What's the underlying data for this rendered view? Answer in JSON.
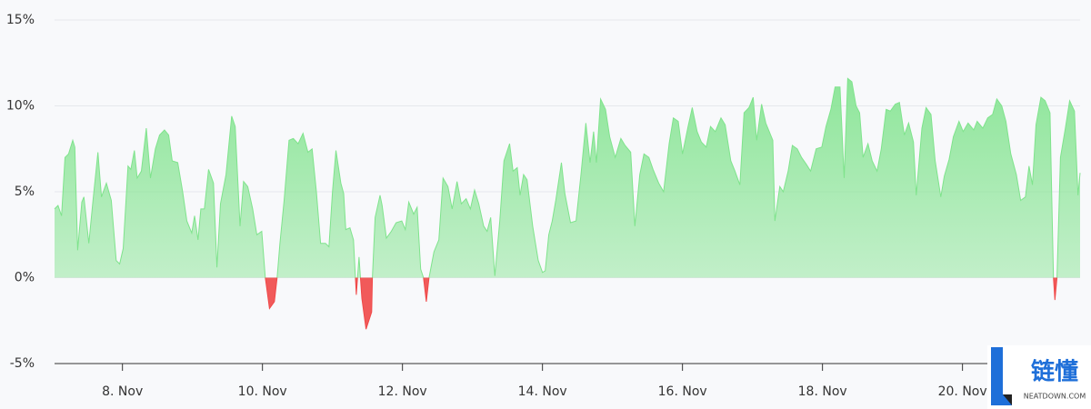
{
  "chart_data": {
    "type": "area",
    "x": [
      7.03,
      7.08,
      7.13,
      7.18,
      7.23,
      7.29,
      7.32,
      7.36,
      7.42,
      7.45,
      7.52,
      7.58,
      7.65,
      7.7,
      7.77,
      7.84,
      7.91,
      7.96,
      8.01,
      8.08,
      8.12,
      8.17,
      8.21,
      8.27,
      8.34,
      8.4,
      8.47,
      8.53,
      8.6,
      8.66,
      8.71,
      8.79,
      8.86,
      8.92,
      8.99,
      9.03,
      9.08,
      9.12,
      9.17,
      9.23,
      9.3,
      9.35,
      9.4,
      9.48,
      9.56,
      9.61,
      9.68,
      9.73,
      9.79,
      9.86,
      9.92,
      9.99,
      10.04,
      10.1,
      10.17,
      10.21,
      10.25,
      10.31,
      10.38,
      10.44,
      10.51,
      10.58,
      10.65,
      10.71,
      10.77,
      10.83,
      10.9,
      10.95,
      11.0,
      11.05,
      11.12,
      11.16,
      11.19,
      11.25,
      11.3,
      11.34,
      11.38,
      11.42,
      11.48,
      11.56,
      11.57,
      11.61,
      11.68,
      11.71,
      11.77,
      11.84,
      11.91,
      11.99,
      12.04,
      12.09,
      12.16,
      12.21,
      12.26,
      12.3,
      12.34,
      12.38,
      12.45,
      12.52,
      12.58,
      12.65,
      12.71,
      12.78,
      12.84,
      12.91,
      12.97,
      13.03,
      13.09,
      13.16,
      13.21,
      13.26,
      13.32,
      13.39,
      13.45,
      13.53,
      13.58,
      13.64,
      13.68,
      13.73,
      13.78,
      13.86,
      13.94,
      14.0,
      14.04,
      14.09,
      14.14,
      14.19,
      14.27,
      14.32,
      14.4,
      14.48,
      14.55,
      14.62,
      14.68,
      14.73,
      14.77,
      14.83,
      14.9,
      14.96,
      15.04,
      15.12,
      15.18,
      15.26,
      15.32,
      15.39,
      15.45,
      15.52,
      15.58,
      15.66,
      15.73,
      15.81,
      15.87,
      15.94,
      16.0,
      16.08,
      16.14,
      16.21,
      16.27,
      16.34,
      16.4,
      16.47,
      16.55,
      16.61,
      16.69,
      16.75,
      16.82,
      16.88,
      16.95,
      17.01,
      17.06,
      17.13,
      17.19,
      17.29,
      17.32,
      17.39,
      17.44,
      17.51,
      17.57,
      17.64,
      17.7,
      17.77,
      17.83,
      17.91,
      17.99,
      18.05,
      18.12,
      18.18,
      18.25,
      18.31,
      18.36,
      18.42,
      18.48,
      18.53,
      18.58,
      18.65,
      18.71,
      18.78,
      18.84,
      18.91,
      18.97,
      19.04,
      19.1,
      19.17,
      19.23,
      19.3,
      19.34,
      19.42,
      19.48,
      19.55,
      19.61,
      19.69,
      19.74,
      19.81,
      19.87,
      19.95,
      20.01,
      20.08,
      20.16,
      20.21,
      20.29,
      20.36,
      20.43,
      20.49,
      20.56,
      20.62,
      20.69,
      20.77,
      20.83,
      20.9,
      20.95,
      21.0,
      21.05,
      21.12,
      21.18,
      21.25,
      21.3,
      21.32,
      21.35,
      21.4,
      21.47,
      21.53,
      21.6,
      21.65,
      21.68
    ],
    "values": [
      4.0,
      4.2,
      3.6,
      7.0,
      7.2,
      8.0,
      7.6,
      1.6,
      4.4,
      4.7,
      2.0,
      4.5,
      7.3,
      4.7,
      5.5,
      4.5,
      1.0,
      0.8,
      1.7,
      6.5,
      6.3,
      7.4,
      5.8,
      6.2,
      8.7,
      5.8,
      7.5,
      8.3,
      8.6,
      8.3,
      6.8,
      6.7,
      5.0,
      3.3,
      2.6,
      3.6,
      2.2,
      4.0,
      4.0,
      6.3,
      5.5,
      0.6,
      4.3,
      6.0,
      9.4,
      8.8,
      3.0,
      5.6,
      5.3,
      4.0,
      2.5,
      2.7,
      0,
      -1.8,
      -1.4,
      0,
      2.0,
      4.5,
      8.0,
      8.1,
      7.8,
      8.4,
      7.3,
      7.5,
      5.0,
      2.0,
      2.0,
      1.8,
      5.0,
      7.4,
      5.5,
      4.9,
      2.8,
      2.9,
      2.2,
      -1.0,
      1.2,
      -1.2,
      -3.0,
      -2.0,
      0,
      3.5,
      4.8,
      4.2,
      2.3,
      2.7,
      3.2,
      3.3,
      2.8,
      4.4,
      3.7,
      4.1,
      0.5,
      0,
      -1.4,
      0,
      1.5,
      2.2,
      5.8,
      5.3,
      4.0,
      5.6,
      4.3,
      4.6,
      4.0,
      5.1,
      4.3,
      3.0,
      2.7,
      3.5,
      0.1,
      3.3,
      6.8,
      7.8,
      6.2,
      6.4,
      4.8,
      6.0,
      5.7,
      3.0,
      1.0,
      0.3,
      0.4,
      2.5,
      3.3,
      4.5,
      6.7,
      4.9,
      3.2,
      3.3,
      6.0,
      9.0,
      6.7,
      8.5,
      6.7,
      10.4,
      9.8,
      8.2,
      7.0,
      8.1,
      7.7,
      7.3,
      3.0,
      6.0,
      7.2,
      7.0,
      6.3,
      5.5,
      5.0,
      7.8,
      9.3,
      9.1,
      7.2,
      8.8,
      9.9,
      8.5,
      7.9,
      7.6,
      8.8,
      8.5,
      9.3,
      8.9,
      6.8,
      6.2,
      5.4,
      9.6,
      9.9,
      10.5,
      8.0,
      10.1,
      9.0,
      8.0,
      3.3,
      5.3,
      5.0,
      6.2,
      7.7,
      7.5,
      7.0,
      6.6,
      6.2,
      7.5,
      7.6,
      8.8,
      9.8,
      11.1,
      11.1,
      5.8,
      11.6,
      11.4,
      10.0,
      9.6,
      7.0,
      7.8,
      6.8,
      6.2,
      7.5,
      9.8,
      9.7,
      10.1,
      10.2,
      8.3,
      9.0,
      7.9,
      4.8,
      8.7,
      9.9,
      9.5,
      6.8,
      4.7,
      5.9,
      6.9,
      8.2,
      9.1,
      8.5,
      9.0,
      8.6,
      9.1,
      8.7,
      9.3,
      9.5,
      10.4,
      10.0,
      9.1,
      7.2,
      6.0,
      4.5,
      4.7,
      6.5,
      5.4,
      8.9,
      10.5,
      10.3,
      9.6,
      0,
      -1.3,
      0,
      7.0,
      8.7,
      10.3,
      9.7,
      4.8,
      6.1
    ],
    "color": "#7fe38c",
    "negative_color": "#f04848",
    "xlim": [
      7.03,
      21.68
    ],
    "xticks": [
      {
        "value": 8,
        "label": "8. Nov"
      },
      {
        "value": 10,
        "label": "10. Nov"
      },
      {
        "value": 12,
        "label": "12. Nov"
      },
      {
        "value": 14,
        "label": "14. Nov"
      },
      {
        "value": 16,
        "label": "16. Nov"
      },
      {
        "value": 18,
        "label": "18. Nov"
      },
      {
        "value": 20,
        "label": "20. Nov"
      }
    ],
    "ylim": [
      -5,
      15
    ],
    "yticks": [
      {
        "value": -5,
        "label": "-5%"
      },
      {
        "value": 0,
        "label": "0%"
      },
      {
        "value": 5,
        "label": "5%"
      },
      {
        "value": 10,
        "label": "10%"
      },
      {
        "value": 15,
        "label": "15%"
      }
    ],
    "grid": true
  },
  "watermark": {
    "text": "链懂",
    "subtext": "NEATDOWN.COM"
  }
}
